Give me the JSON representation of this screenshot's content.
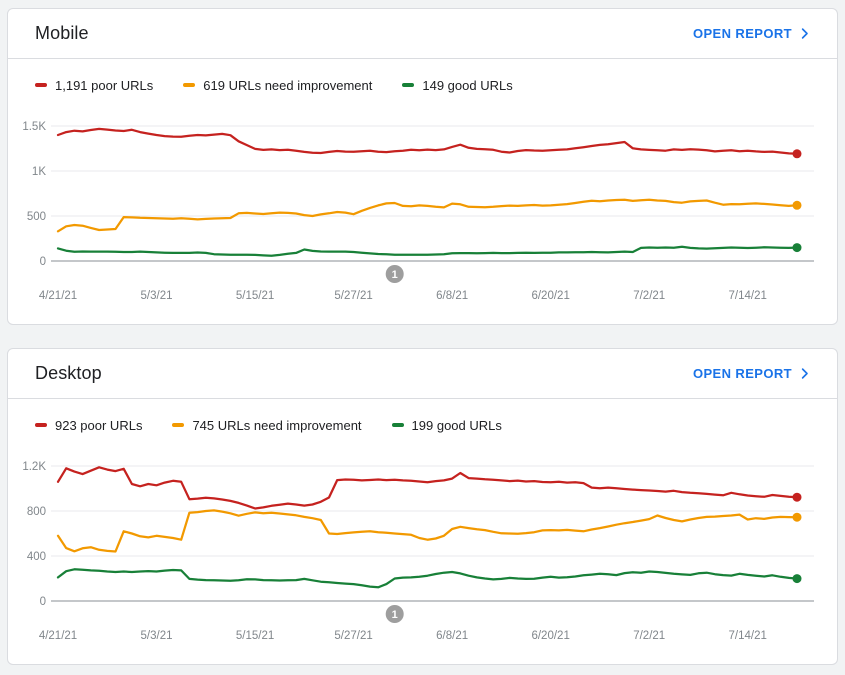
{
  "colors": {
    "poor": "#c5221f",
    "needs_improvement": "#f29900",
    "good": "#188038",
    "link": "#1a73e8",
    "axis_text": "#80868b",
    "grid": "#e8eaed",
    "zero_line": "#8a8f94",
    "marker": "#9e9e9e",
    "marker_text": "#ffffff"
  },
  "cards": [
    {
      "title": "Mobile",
      "open_report_label": "OPEN REPORT",
      "legend": [
        {
          "label": "1,191 poor URLs",
          "color_key": "poor"
        },
        {
          "label": "619 URLs need improvement",
          "color_key": "needs_improvement"
        },
        {
          "label": "149 good URLs",
          "color_key": "good"
        }
      ],
      "chart_data": {
        "type": "line",
        "title": "Mobile Core Web Vitals URL counts over time",
        "y_max": 1500,
        "y_ticks": [
          {
            "label": "1.5K",
            "value": 1500
          },
          {
            "label": "1K",
            "value": 1000
          },
          {
            "label": "500",
            "value": 500
          },
          {
            "label": "0",
            "value": 0
          }
        ],
        "x_ticks": [
          {
            "label": "4/21/21",
            "index": 0
          },
          {
            "label": "5/3/21",
            "index": 12
          },
          {
            "label": "5/15/21",
            "index": 24
          },
          {
            "label": "5/27/21",
            "index": 36
          },
          {
            "label": "6/8/21",
            "index": 48
          },
          {
            "label": "6/20/21",
            "index": 60
          },
          {
            "label": "7/2/21",
            "index": 72
          },
          {
            "label": "7/14/21",
            "index": 84
          }
        ],
        "marker": {
          "label": "1",
          "index": 41
        },
        "series": [
          {
            "name": "poor URLs",
            "color_key": "poor",
            "values": [
              1400,
              1432,
              1448,
              1440,
              1456,
              1468,
              1460,
              1450,
              1444,
              1458,
              1432,
              1415,
              1400,
              1388,
              1382,
              1380,
              1392,
              1400,
              1396,
              1404,
              1412,
              1398,
              1330,
              1288,
              1246,
              1234,
              1240,
              1232,
              1236,
              1226,
              1212,
              1202,
              1200,
              1212,
              1222,
              1216,
              1214,
              1220,
              1226,
              1214,
              1210,
              1220,
              1226,
              1236,
              1230,
              1238,
              1232,
              1240,
              1268,
              1292,
              1258,
              1246,
              1242,
              1236,
              1214,
              1206,
              1222,
              1232,
              1228,
              1226,
              1230,
              1236,
              1240,
              1252,
              1264,
              1278,
              1290,
              1298,
              1310,
              1322,
              1252,
              1240,
              1234,
              1230,
              1226,
              1240,
              1234,
              1242,
              1238,
              1230,
              1218,
              1224,
              1230,
              1220,
              1226,
              1218,
              1212,
              1216,
              1206,
              1196,
              1191
            ]
          },
          {
            "name": "URLs need improvement",
            "color_key": "needs_improvement",
            "values": [
              330,
              385,
              400,
              392,
              368,
              345,
              350,
              356,
              488,
              484,
              480,
              478,
              476,
              472,
              470,
              474,
              470,
              462,
              468,
              472,
              475,
              478,
              530,
              534,
              528,
              522,
              530,
              538,
              534,
              528,
              510,
              500,
              518,
              530,
              544,
              538,
              520,
              558,
              590,
              618,
              640,
              645,
              612,
              608,
              618,
              612,
              602,
              596,
              638,
              630,
              602,
              600,
              598,
              602,
              610,
              616,
              612,
              618,
              622,
              616,
              618,
              624,
              632,
              645,
              658,
              670,
              664,
              672,
              678,
              680,
              668,
              676,
              680,
              672,
              668,
              654,
              648,
              662,
              668,
              672,
              648,
              626,
              632,
              630,
              636,
              640,
              634,
              628,
              620,
              612,
              619
            ]
          },
          {
            "name": "good URLs",
            "color_key": "good",
            "values": [
              140,
              115,
              103,
              106,
              104,
              105,
              104,
              103,
              100,
              100,
              104,
              100,
              96,
              92,
              90,
              90,
              90,
              94,
              90,
              76,
              72,
              70,
              70,
              70,
              68,
              62,
              58,
              68,
              80,
              90,
              128,
              112,
              106,
              104,
              104,
              104,
              100,
              92,
              84,
              78,
              74,
              70,
              70,
              70,
              70,
              70,
              72,
              74,
              86,
              88,
              88,
              86,
              88,
              90,
              88,
              88,
              90,
              92,
              90,
              92,
              92,
              96,
              95,
              98,
              97,
              100,
              98,
              96,
              100,
              104,
              100,
              146,
              150,
              148,
              150,
              148,
              158,
              146,
              140,
              138,
              142,
              146,
              150,
              148,
              144,
              148,
              152,
              150,
              148,
              146,
              149
            ]
          }
        ]
      }
    },
    {
      "title": "Desktop",
      "open_report_label": "OPEN REPORT",
      "legend": [
        {
          "label": "923 poor URLs",
          "color_key": "poor"
        },
        {
          "label": "745 URLs need improvement",
          "color_key": "needs_improvement"
        },
        {
          "label": "199 good URLs",
          "color_key": "good"
        }
      ],
      "chart_data": {
        "type": "line",
        "title": "Desktop Core Web Vitals URL counts over time",
        "y_max": 1200,
        "y_ticks": [
          {
            "label": "1.2K",
            "value": 1200
          },
          {
            "label": "800",
            "value": 800
          },
          {
            "label": "400",
            "value": 400
          },
          {
            "label": "0",
            "value": 0
          }
        ],
        "x_ticks": [
          {
            "label": "4/21/21",
            "index": 0
          },
          {
            "label": "5/3/21",
            "index": 12
          },
          {
            "label": "5/15/21",
            "index": 24
          },
          {
            "label": "5/27/21",
            "index": 36
          },
          {
            "label": "6/8/21",
            "index": 48
          },
          {
            "label": "6/20/21",
            "index": 60
          },
          {
            "label": "7/2/21",
            "index": 72
          },
          {
            "label": "7/14/21",
            "index": 84
          }
        ],
        "marker": {
          "label": "1",
          "index": 41
        },
        "series": [
          {
            "name": "poor URLs",
            "color_key": "poor",
            "values": [
              1060,
              1180,
              1150,
              1128,
              1158,
              1188,
              1168,
              1155,
              1175,
              1040,
              1020,
              1040,
              1028,
              1052,
              1068,
              1060,
              905,
              910,
              918,
              912,
              902,
              890,
              872,
              848,
              822,
              832,
              846,
              856,
              866,
              858,
              848,
              858,
              882,
              920,
              1075,
              1080,
              1078,
              1072,
              1076,
              1080,
              1075,
              1078,
              1072,
              1068,
              1062,
              1056,
              1066,
              1072,
              1088,
              1138,
              1092,
              1088,
              1082,
              1078,
              1072,
              1066,
              1070,
              1062,
              1066,
              1058,
              1056,
              1060,
              1052,
              1056,
              1048,
              1008,
              1002,
              1008,
              1002,
              996,
              990,
              986,
              982,
              978,
              972,
              980,
              968,
              962,
              958,
              952,
              946,
              940,
              962,
              948,
              938,
              932,
              926,
              942,
              934,
              926,
              923
            ]
          },
          {
            "name": "URLs need improvement",
            "color_key": "needs_improvement",
            "values": [
              580,
              470,
              442,
              468,
              478,
              455,
              445,
              440,
              620,
              600,
              575,
              565,
              580,
              570,
              560,
              545,
              785,
              790,
              800,
              805,
              795,
              780,
              758,
              775,
              788,
              780,
              785,
              778,
              770,
              762,
              748,
              736,
              720,
              600,
              596,
              604,
              610,
              616,
              620,
              612,
              606,
              600,
              595,
              588,
              560,
              545,
              556,
              580,
              640,
              660,
              648,
              638,
              630,
              615,
              602,
              600,
              598,
              604,
              612,
              628,
              630,
              628,
              632,
              626,
              620,
              636,
              648,
              662,
              678,
              692,
              702,
              715,
              728,
              760,
              738,
              720,
              708,
              724,
              738,
              748,
              750,
              756,
              760,
              768,
              724,
              736,
              730,
              742,
              748,
              746,
              745
            ]
          },
          {
            "name": "good URLs",
            "color_key": "good",
            "values": [
              210,
              265,
              282,
              278,
              272,
              268,
              262,
              258,
              262,
              258,
              262,
              266,
              262,
              270,
              276,
              272,
              196,
              190,
              186,
              184,
              182,
              180,
              184,
              194,
              192,
              186,
              184,
              182,
              184,
              186,
              196,
              184,
              172,
              166,
              160,
              155,
              150,
              140,
              128,
              122,
              150,
              200,
              208,
              210,
              215,
              225,
              240,
              252,
              258,
              245,
              225,
              210,
              200,
              192,
              196,
              205,
              200,
              196,
              198,
              208,
              215,
              208,
              212,
              218,
              228,
              235,
              242,
              238,
              230,
              248,
              255,
              252,
              262,
              258,
              250,
              242,
              236,
              232,
              246,
              252,
              238,
              230,
              226,
              242,
              232,
              225,
              218,
              228,
              215,
              205,
              199
            ]
          }
        ]
      }
    }
  ]
}
